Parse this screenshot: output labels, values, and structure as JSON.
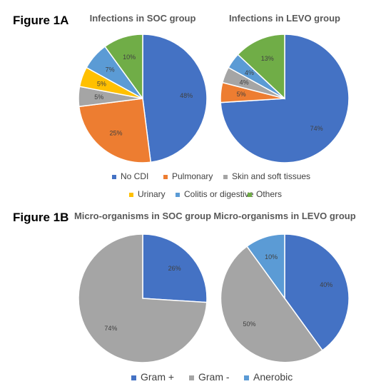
{
  "figure_labels": {
    "a": "Figure 1A",
    "b": "Figure 1B"
  },
  "colors": {
    "No CDI": "#4472C4",
    "Pulmonary": "#ED7D31",
    "Skin and soft tissues": "#A5A5A5",
    "Urinary": "#FFC000",
    "Colitis or digestive": "#5B9BD5",
    "Others": "#70AD47",
    "Gram +": "#4472C4",
    "Gram -": "#A5A5A5",
    "Anerobic": "#5B9BD5"
  },
  "legends": {
    "a": [
      "No CDI",
      "Pulmonary",
      "Skin and soft tissues",
      "Urinary",
      "Colitis or digestive",
      "Others"
    ],
    "b": [
      "Gram +",
      "Gram -",
      "Anerobic"
    ]
  },
  "chart_data": [
    {
      "type": "pie",
      "title": "Infections in SOC group",
      "categories": [
        "No CDI",
        "Pulmonary",
        "Skin and soft tissues",
        "Urinary",
        "Colitis or digestive",
        "Others"
      ],
      "values": [
        48,
        25,
        5,
        5,
        7,
        10
      ],
      "labels": [
        "48%",
        "25%",
        "5%",
        "5%",
        "7%",
        "10%"
      ],
      "legend": "bottom"
    },
    {
      "type": "pie",
      "title": "Infections in LEVO group",
      "categories": [
        "No CDI",
        "Pulmonary",
        "Skin and soft tissues",
        "Colitis or digestive",
        "Others"
      ],
      "values": [
        74,
        5,
        4,
        4,
        13
      ],
      "labels": [
        "74%",
        "5%",
        "4%",
        "4%",
        "13%"
      ],
      "legend": "bottom"
    },
    {
      "type": "pie",
      "title": "Micro-organisms in SOC group",
      "categories": [
        "Gram +",
        "Gram -"
      ],
      "values": [
        26,
        74
      ],
      "labels": [
        "26%",
        "74%"
      ],
      "legend": "bottom"
    },
    {
      "type": "pie",
      "title": "Micro-organisms in LEVO group",
      "categories": [
        "Gram +",
        "Gram -",
        "Anerobic"
      ],
      "values": [
        40,
        50,
        10
      ],
      "labels": [
        "40%",
        "50%",
        "10%"
      ],
      "legend": "bottom"
    }
  ]
}
